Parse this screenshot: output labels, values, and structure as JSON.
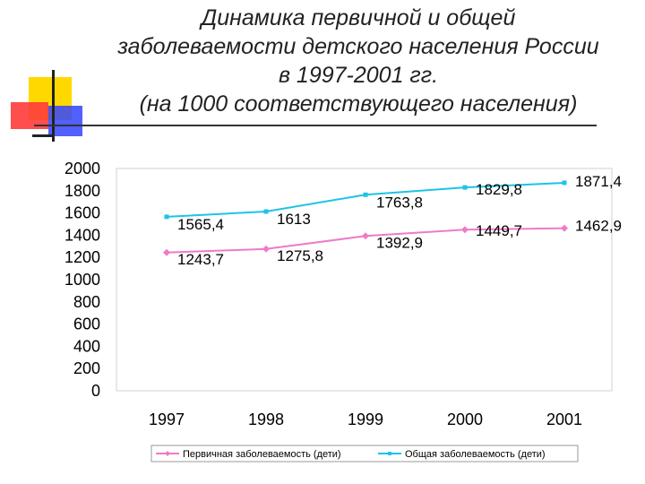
{
  "title": {
    "lines": [
      "Динамика первичной и общей",
      "заболеваемости детского населения России",
      "в 1997-2001 гг.",
      "(на 1000 соответствующего населения)"
    ]
  },
  "chart_data": {
    "type": "line",
    "x": [
      "1997",
      "1998",
      "1999",
      "2000",
      "2001"
    ],
    "ylim": [
      0,
      2000
    ],
    "yticks": [
      "2000",
      "1800",
      "1600",
      "1400",
      "1200",
      "1000",
      "800",
      "600",
      "400",
      "200",
      "0"
    ],
    "grid": false,
    "legend_position": "bottom",
    "series": [
      {
        "name": "Первичная заболеваемость (дети)",
        "values": [
          1243.7,
          1275.8,
          1392.9,
          1449.7,
          1462.9
        ],
        "labels": [
          "1243,7",
          "1275,8",
          "1392,9",
          "1449,7",
          "1462,9"
        ],
        "color": "#f07ac8",
        "marker": "diamond"
      },
      {
        "name": "Общая заболеваемость (дети)",
        "values": [
          1565.4,
          1613,
          1763.8,
          1829.8,
          1871.4
        ],
        "labels": [
          "1565,4",
          "1613",
          "1763,8",
          "1829,8",
          "1871,4"
        ],
        "color": "#1ec3e6",
        "marker": "square"
      }
    ]
  }
}
